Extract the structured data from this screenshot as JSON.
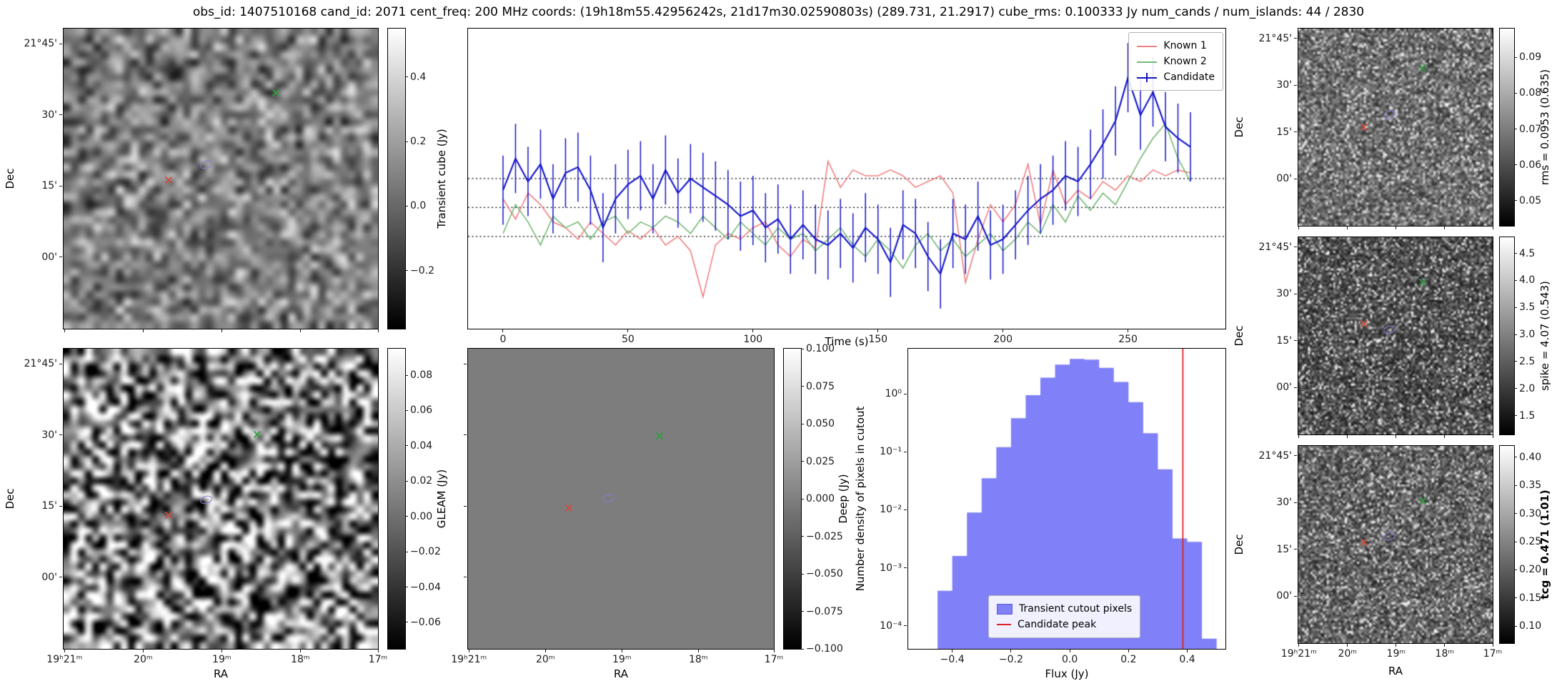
{
  "title": "obs_id: 1407510168 cand_id: 2071 cent_freq: 200 MHz coords: (19h18m55.42956242s, 21d17m30.02590803s) (289.731, 21.2917) cube_rms: 0.100333 Jy num_cands / num_islands: 44 / 2830",
  "colors": {
    "known1": "#f08080",
    "known2": "#74b874",
    "candidate": "#1414c8",
    "hist_fill": "#8080f8",
    "hist_vline": "#dd2222",
    "marker_green": "#2e9e3e",
    "marker_red": "#d44a3a",
    "marker_ellipse": "#8a7bd8"
  },
  "axes": {
    "ra_label": "RA",
    "dec_label": "Dec",
    "ra_ticks": [
      "19ʰ21ᵐ",
      "20ᵐ",
      "19ᵐ",
      "18ᵐ",
      "17ᵐ"
    ],
    "ra_fracs": [
      0.003,
      0.253,
      0.503,
      0.753,
      1.0
    ],
    "dec_ticks": [
      "21°45'",
      "30'",
      "15'",
      "00'"
    ],
    "dec_fracs": [
      0.05,
      0.287,
      0.524,
      0.761
    ]
  },
  "colorbars": {
    "cube": {
      "label": "Transient cube (Jy)",
      "vmin": -0.38,
      "vmax": 0.55,
      "ticks": [
        0.4,
        0.2,
        0.0,
        -0.2
      ],
      "decimals": 1,
      "bold": false
    },
    "gleam": {
      "label": "GLEAM (Jy)",
      "vmin": -0.075,
      "vmax": 0.095,
      "ticks": [
        0.08,
        0.06,
        0.04,
        0.02,
        0.0,
        -0.02,
        -0.04,
        -0.06
      ],
      "decimals": 2,
      "bold": false
    },
    "deep": {
      "label": "Deep (Jy)",
      "vmin": -0.1,
      "vmax": 0.1,
      "ticks": [
        0.1,
        0.075,
        0.05,
        0.025,
        0.0,
        -0.025,
        -0.05,
        -0.075,
        -0.1
      ],
      "decimals": 3,
      "bold": false
    },
    "rms": {
      "label": "rms = 0.0953 (0.635)",
      "vmin": 0.043,
      "vmax": 0.098,
      "ticks": [
        0.09,
        0.08,
        0.07,
        0.06,
        0.05
      ],
      "decimals": 2,
      "bold": false
    },
    "spike": {
      "label": "spike = 4.07 (0.543)",
      "vmin": 1.15,
      "vmax": 4.8,
      "ticks": [
        4.5,
        4.0,
        3.5,
        3.0,
        2.5,
        2.0,
        1.5
      ],
      "decimals": 1,
      "bold": false
    },
    "tcg": {
      "label": "tcg = 0.471 (1.01)",
      "vmin": 0.07,
      "vmax": 0.42,
      "ticks": [
        0.4,
        0.35,
        0.3,
        0.25,
        0.2,
        0.15,
        0.1
      ],
      "decimals": 2,
      "bold": true
    }
  },
  "markers": {
    "cube": [
      {
        "shape": "x",
        "color": "#2e9e3e",
        "fx": 0.675,
        "fy": 0.215
      },
      {
        "shape": "x",
        "color": "#d44a3a",
        "fx": 0.335,
        "fy": 0.505
      },
      {
        "shape": "ellipse",
        "color": "#8a7bd8",
        "fx": 0.455,
        "fy": 0.455
      }
    ],
    "gleam": [
      {
        "shape": "x",
        "color": "#2e9e3e",
        "fx": 0.615,
        "fy": 0.285
      },
      {
        "shape": "x",
        "color": "#d44a3a",
        "fx": 0.335,
        "fy": 0.555
      },
      {
        "shape": "ellipse",
        "color": "#8a7bd8",
        "fx": 0.455,
        "fy": 0.505
      }
    ],
    "deep": [
      {
        "shape": "x",
        "color": "#2e9e3e",
        "fx": 0.625,
        "fy": 0.29
      },
      {
        "shape": "x",
        "color": "#d44a3a",
        "fx": 0.33,
        "fy": 0.53
      },
      {
        "shape": "ellipse",
        "color": "#8a7bd8",
        "fx": 0.46,
        "fy": 0.5
      }
    ],
    "rms": [
      {
        "shape": "x",
        "color": "#2e9e3e",
        "fx": 0.64,
        "fy": 0.2
      },
      {
        "shape": "x",
        "color": "#d44a3a",
        "fx": 0.34,
        "fy": 0.5
      },
      {
        "shape": "ellipse",
        "color": "#8a7bd8",
        "fx": 0.47,
        "fy": 0.44
      }
    ],
    "spike": [
      {
        "shape": "x",
        "color": "#2e9e3e",
        "fx": 0.64,
        "fy": 0.23
      },
      {
        "shape": "x",
        "color": "#d44a3a",
        "fx": 0.34,
        "fy": 0.44
      },
      {
        "shape": "ellipse",
        "color": "#8a7bd8",
        "fx": 0.47,
        "fy": 0.47
      }
    ],
    "tcg": [
      {
        "shape": "x",
        "color": "#2e9e3e",
        "fx": 0.64,
        "fy": 0.28
      },
      {
        "shape": "x",
        "color": "#d44a3a",
        "fx": 0.34,
        "fy": 0.49
      },
      {
        "shape": "ellipse",
        "color": "#8a7bd8",
        "fx": 0.47,
        "fy": 0.46
      }
    ]
  },
  "chart_data": [
    {
      "type": "line",
      "xlabel": "Time (s)",
      "x_ticks": [
        0,
        50,
        100,
        150,
        200,
        250
      ],
      "xlim": [
        -14,
        289
      ],
      "ylim": [
        -0.42,
        0.62
      ],
      "hline_values": [
        0.1003,
        0.0,
        -0.1003
      ],
      "legend_position": "upper right",
      "x": [
        0,
        5,
        10,
        15,
        20,
        25,
        30,
        35,
        40,
        45,
        50,
        55,
        60,
        65,
        70,
        75,
        80,
        85,
        90,
        95,
        100,
        105,
        110,
        115,
        120,
        125,
        130,
        135,
        140,
        145,
        150,
        155,
        160,
        165,
        170,
        175,
        180,
        185,
        190,
        195,
        200,
        205,
        210,
        215,
        220,
        225,
        230,
        235,
        240,
        245,
        250,
        255,
        260,
        265,
        270,
        275
      ],
      "series": [
        {
          "name": "Known 1",
          "color": "#f08080",
          "values": [
            0.03,
            -0.04,
            0.05,
            0.01,
            -0.05,
            -0.07,
            -0.11,
            -0.05,
            -0.09,
            -0.13,
            -0.08,
            -0.11,
            -0.07,
            -0.13,
            -0.1,
            -0.15,
            -0.31,
            -0.13,
            -0.09,
            -0.11,
            -0.07,
            -0.05,
            -0.13,
            -0.17,
            -0.11,
            -0.14,
            0.16,
            0.07,
            0.13,
            0.11,
            0.11,
            0.13,
            0.11,
            0.07,
            0.09,
            0.11,
            0.05,
            -0.26,
            -0.11,
            0.01,
            -0.05,
            0.01,
            0.15,
            -0.06,
            0.13,
            0.01,
            0.06,
            0.03,
            0.09,
            0.06,
            0.11,
            0.09,
            0.13,
            0.11,
            0.13,
            0.12
          ]
        },
        {
          "name": "Known 2",
          "color": "#74b874",
          "values": [
            -0.09,
            0.01,
            -0.05,
            -0.13,
            -0.03,
            -0.07,
            -0.05,
            -0.11,
            -0.05,
            -0.03,
            -0.09,
            -0.05,
            -0.07,
            -0.03,
            -0.05,
            -0.09,
            -0.03,
            -0.07,
            -0.11,
            -0.05,
            -0.09,
            -0.13,
            -0.07,
            -0.11,
            -0.09,
            -0.15,
            -0.11,
            -0.07,
            -0.13,
            -0.17,
            -0.11,
            -0.15,
            -0.21,
            -0.13,
            -0.09,
            -0.15,
            -0.11,
            -0.17,
            -0.13,
            -0.09,
            -0.15,
            -0.11,
            -0.05,
            -0.09,
            0.01,
            -0.05,
            0.04,
            -0.01,
            0.05,
            0.01,
            0.09,
            0.17,
            0.24,
            0.29,
            0.17,
            0.09
          ]
        },
        {
          "name": "Candidate",
          "color": "#1414c8",
          "yerr": 0.12,
          "values": [
            0.06,
            0.17,
            0.09,
            0.15,
            0.03,
            0.12,
            0.14,
            0.06,
            -0.07,
            0.03,
            0.08,
            0.11,
            0.03,
            0.13,
            0.05,
            0.1,
            0.07,
            0.04,
            0.01,
            -0.03,
            -0.01,
            -0.07,
            -0.04,
            -0.11,
            -0.06,
            -0.11,
            -0.13,
            -0.09,
            -0.14,
            -0.07,
            -0.11,
            -0.19,
            -0.06,
            -0.09,
            -0.17,
            -0.23,
            -0.09,
            -0.11,
            -0.03,
            -0.13,
            -0.11,
            -0.06,
            -0.01,
            0.03,
            0.06,
            0.11,
            0.09,
            0.15,
            0.22,
            0.3,
            0.45,
            0.32,
            0.4,
            0.28,
            0.24,
            0.21
          ]
        }
      ]
    },
    {
      "type": "histogram",
      "xlabel": "Flux (Jy)",
      "ylabel": "Number density of pixels in cutout",
      "x_ticks": [
        -0.4,
        -0.2,
        0.0,
        0.2,
        0.4
      ],
      "xlim": [
        -0.55,
        0.53
      ],
      "ylim": [
        4e-05,
        6
      ],
      "ylog": true,
      "y_tick_values": [
        1,
        0.1,
        0.01,
        0.001,
        0.0001
      ],
      "y_tick_labels": [
        "10⁰",
        "10⁻¹",
        "10⁻²",
        "10⁻³",
        "10⁻⁴"
      ],
      "bin_edges": [
        -0.5,
        -0.45,
        -0.4,
        -0.35,
        -0.3,
        -0.25,
        -0.2,
        -0.15,
        -0.1,
        -0.05,
        0.0,
        0.05,
        0.1,
        0.15,
        0.2,
        0.25,
        0.3,
        0.35,
        0.4,
        0.45,
        0.5
      ],
      "densities": [
        0.0,
        0.0004,
        0.0016,
        0.009,
        0.035,
        0.12,
        0.38,
        0.95,
        1.9,
        3.2,
        4.0,
        3.9,
        2.8,
        1.6,
        0.72,
        0.21,
        0.05,
        0.0032,
        0.0028,
        6e-05
      ],
      "vline": 0.385,
      "fill_color": "#8080f8",
      "vline_color": "#dd2222",
      "legend": [
        "Transient cutout pixels",
        "Candidate peak"
      ],
      "legend_position": "lower center"
    }
  ]
}
